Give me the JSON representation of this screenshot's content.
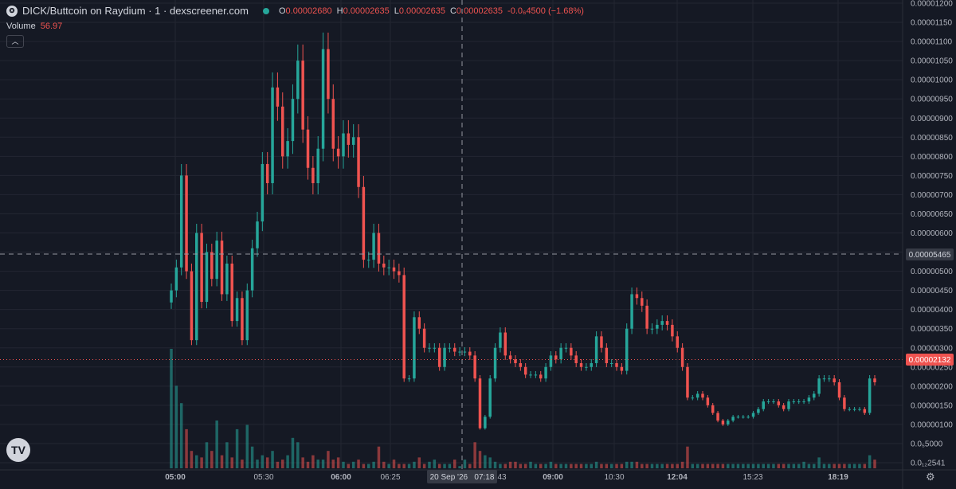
{
  "header": {
    "logo_icon": "dexscreener-token-icon",
    "title": "DICK/Buttcoin on Raydium · 1 · dexscreener.com",
    "status_color": "#26a69a",
    "open_label": "O",
    "open": "0.00002680",
    "high_label": "H",
    "high": "0.00002635",
    "low_label": "L",
    "low": "0.00002635",
    "close_label": "C",
    "close": "0.00002635",
    "change": "-0.0₆4500 (−1.68%)"
  },
  "volume": {
    "label": "Volume",
    "value": "56.97"
  },
  "collapse_icon": "chevron-up-icon",
  "crosshair": {
    "price_label": "0.00005465",
    "time_label": "20 Sep '26   07:18"
  },
  "last_price_label": "0.00002132",
  "settings_icon": "gear-icon",
  "brand_logo": "TV",
  "colors": {
    "up": "#26a69a",
    "down": "#ef5350",
    "background": "#151924",
    "grid": "#232632",
    "axis_text": "#b2b5be"
  },
  "chart_data": {
    "type": "candlestick",
    "title": "DICK/Buttcoin on Raydium · 1",
    "ylim": [
      0.0,
      0.00012
    ],
    "y_tick_labels": [
      "0.00001200",
      "0.00001150",
      "0.00001100",
      "0.00001050",
      "0.00001000",
      "0.00000950",
      "0.00000900",
      "0.00000850",
      "0.00000800",
      "0.00000750",
      "0.00000700",
      "0.00000650",
      "0.00000600",
      "0.00000550",
      "0.00000500",
      "0.00000450",
      "0.00000400",
      "0.00000350",
      "0.00000300",
      "0.00000250",
      "0.00000200",
      "0.00000150",
      "0.00000100",
      "0.0₅5000",
      "0.0₁₂2541"
    ],
    "x_tick_labels": [
      "05:00",
      "05:30",
      "06:00",
      "06:25",
      "07:18",
      "09:00",
      "10:30",
      "12:04",
      "15:23",
      "18:19"
    ],
    "x_tick_labels_partial": [
      "43"
    ],
    "crosshair_price": 5.465e-05,
    "last_price": 2.132e-05,
    "grid": true,
    "price_series": [
      4.5e-05,
      5.1e-05,
      7.5e-05,
      5e-05,
      3.2e-05,
      6e-05,
      4.2e-05,
      5.5e-05,
      4.8e-05,
      5.8e-05,
      4.4e-05,
      5.2e-05,
      3.7e-05,
      4.3e-05,
      3.2e-05,
      4.5e-05,
      5.6e-05,
      6.3e-05,
      7.8e-05,
      7.3e-05,
      9.8e-05,
      9.3e-05,
      8e-05,
      8.4e-05,
      9.5e-05,
      0.000105,
      8.7e-05,
      7.7e-05,
      7.3e-05,
      8.2e-05,
      0.000108,
      9.5e-05,
      8.2e-05,
      8e-05,
      8.6e-05,
      8.3e-05,
      8.5e-05,
      7.2e-05,
      5.3e-05,
      5.3e-05,
      6e-05,
      5.2e-05,
      5.1e-05,
      5.1e-05,
      5e-05,
      4.9e-05,
      2.2e-05,
      2.2e-05,
      3.8e-05,
      3.5e-05,
      3e-05,
      3e-05,
      3e-05,
      2.5e-05,
      3e-05,
      3e-05,
      2.9e-05,
      2.9e-05,
      2.9e-05,
      2.8e-05,
      2.2e-05,
      9e-06,
      1.2e-05,
      2.2e-05,
      3e-05,
      3.4e-05,
      2.8e-05,
      2.7e-05,
      2.6e-05,
      2.5e-05,
      2.3e-05,
      2.3e-05,
      2.3e-05,
      2.2e-05,
      2.5e-05,
      2.8e-05,
      2.7e-05,
      3e-05,
      3e-05,
      2.8e-05,
      2.6e-05,
      2.5e-05,
      2.5e-05,
      2.6e-05,
      3.3e-05,
      3e-05,
      2.6e-05,
      2.6e-05,
      2.5e-05,
      2.4e-05,
      3.5e-05,
      4.4e-05,
      4.3e-05,
      4.1e-05,
      3.5e-05,
      3.5e-05,
      3.6e-05,
      3.7e-05,
      3.6e-05,
      3.3e-05,
      3e-05,
      2.5e-05,
      1.7e-05,
      1.7e-05,
      1.8e-05,
      1.7e-05,
      1.5e-05,
      1.3e-05,
      1.1e-05,
      1e-05,
      1.1e-05,
      1.2e-05,
      1.2e-05,
      1.2e-05,
      1.2e-05,
      1.3e-05,
      1.4e-05,
      1.6e-05,
      1.6e-05,
      1.6e-05,
      1.5e-05,
      1.4e-05,
      1.6e-05,
      1.6e-05,
      1.6e-05,
      1.6e-05,
      1.7e-05,
      1.8e-05,
      2.2e-05,
      2.2e-05,
      2.2e-05,
      2.1e-05,
      1.7e-05,
      1.4e-05,
      1.4e-05,
      1.4e-05,
      1.4e-05,
      1.3e-05,
      2.2e-05,
      2.1e-05
    ],
    "volume_series": [
      55,
      38,
      30,
      18,
      8,
      6,
      5,
      12,
      8,
      22,
      6,
      12,
      5,
      18,
      4,
      20,
      10,
      4,
      6,
      5,
      8,
      3,
      4,
      6,
      14,
      12,
      5,
      3,
      6,
      4,
      4,
      8,
      4,
      5,
      3,
      2,
      3,
      4,
      2,
      2,
      3,
      10,
      3,
      2,
      4,
      2,
      2,
      2,
      3,
      5,
      2,
      3,
      4,
      2,
      2,
      2,
      4,
      1,
      4,
      2,
      12,
      8,
      6,
      5,
      3,
      2,
      2,
      3,
      3,
      2,
      2,
      3,
      2,
      2,
      2,
      3,
      2,
      2,
      2,
      2,
      2,
      2,
      2,
      2,
      3,
      2,
      2,
      2,
      2,
      2,
      3,
      3,
      3,
      2,
      2,
      2,
      2,
      2,
      2,
      2,
      2,
      3,
      10,
      2,
      2,
      2,
      2,
      2,
      2,
      2,
      2,
      2,
      2,
      2,
      2,
      2,
      2,
      2,
      2,
      2,
      2,
      2,
      2,
      2,
      2,
      3,
      2,
      2,
      5,
      2,
      2,
      2,
      2,
      2,
      2,
      2,
      2,
      2,
      6,
      4
    ]
  }
}
